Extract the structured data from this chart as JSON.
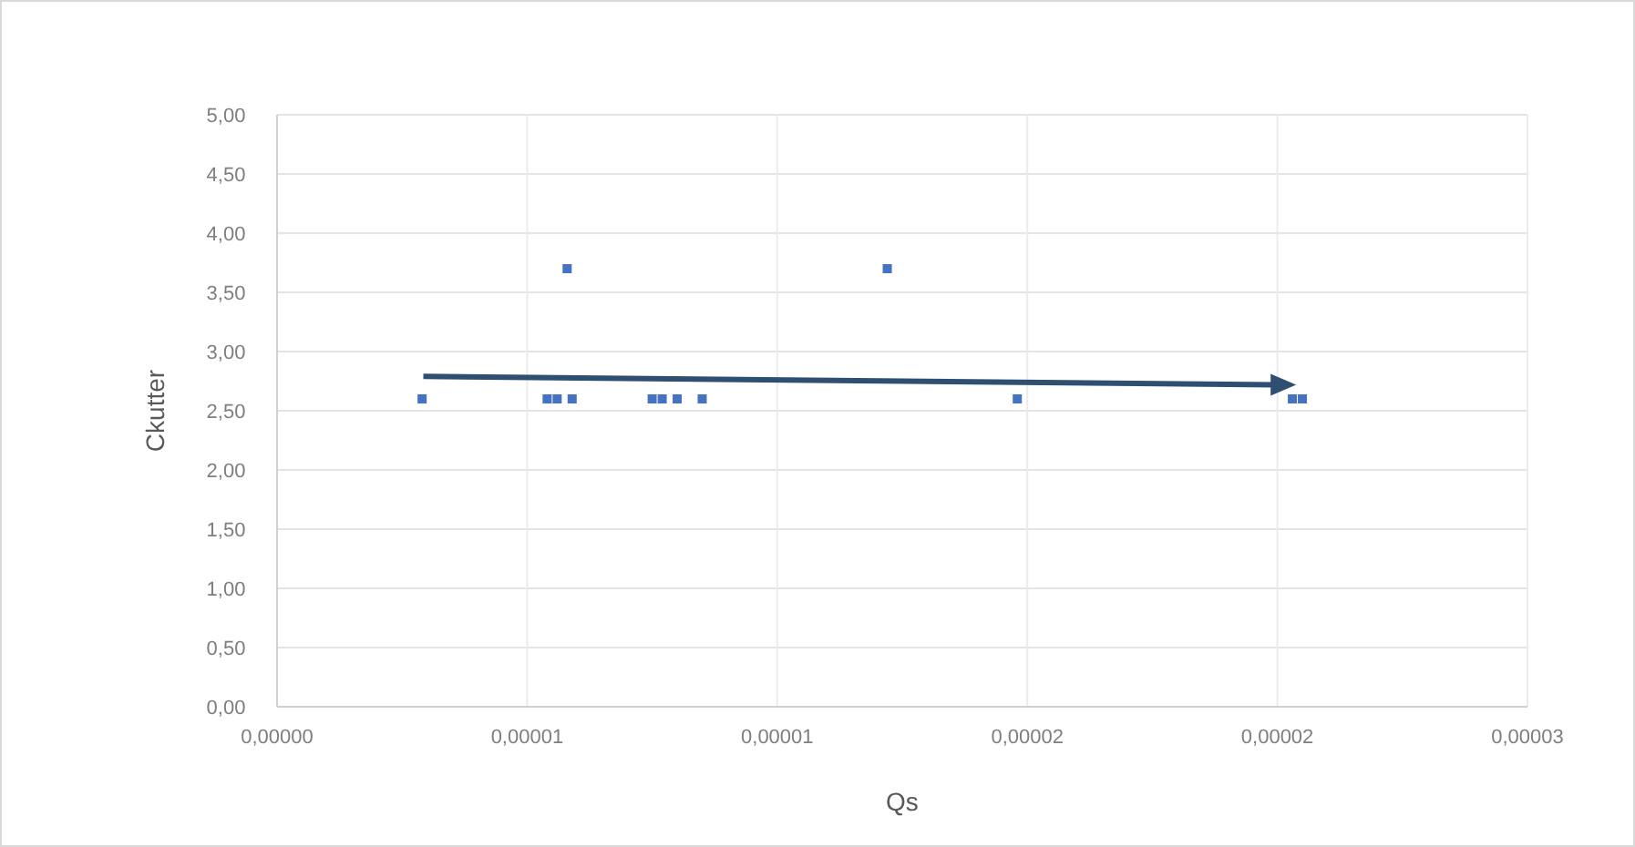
{
  "chart_data": {
    "type": "scatter",
    "xlabel": "Qs",
    "ylabel": "Ckutter",
    "marker": "square",
    "grid": true,
    "xlim": [
      0,
      2.5e-05
    ],
    "ylim": [
      0,
      5
    ],
    "xticks": [
      {
        "value": 0,
        "label": "0,00000"
      },
      {
        "value": 5e-06,
        "label": "0,00001"
      },
      {
        "value": 1e-05,
        "label": "0,00001"
      },
      {
        "value": 1.5e-05,
        "label": "0,00002"
      },
      {
        "value": 2e-05,
        "label": "0,00002"
      },
      {
        "value": 2.5e-05,
        "label": "0,00003"
      }
    ],
    "yticks": [
      {
        "value": 0,
        "label": "0,00"
      },
      {
        "value": 0.5,
        "label": "0,50"
      },
      {
        "value": 1,
        "label": "1,00"
      },
      {
        "value": 1.5,
        "label": "1,50"
      },
      {
        "value": 2,
        "label": "2,00"
      },
      {
        "value": 2.5,
        "label": "2,50"
      },
      {
        "value": 3,
        "label": "3,00"
      },
      {
        "value": 3.5,
        "label": "3,50"
      },
      {
        "value": 4,
        "label": "4,00"
      },
      {
        "value": 4.5,
        "label": "4,50"
      },
      {
        "value": 5,
        "label": "5,00"
      }
    ],
    "series": [
      {
        "color": "#4472c4",
        "x": [
          2.9e-06,
          5.4e-06,
          5.6e-06,
          5.9e-06,
          5.8e-06,
          7.5e-06,
          7.7e-06,
          8e-06,
          8.5e-06,
          1.22e-05,
          1.48e-05,
          2.03e-05,
          2.05e-05
        ],
        "values": [
          2.6,
          2.6,
          2.6,
          2.6,
          3.7,
          2.6,
          2.6,
          2.6,
          2.6,
          3.7,
          2.6,
          2.6,
          2.6
        ]
      }
    ]
  }
}
